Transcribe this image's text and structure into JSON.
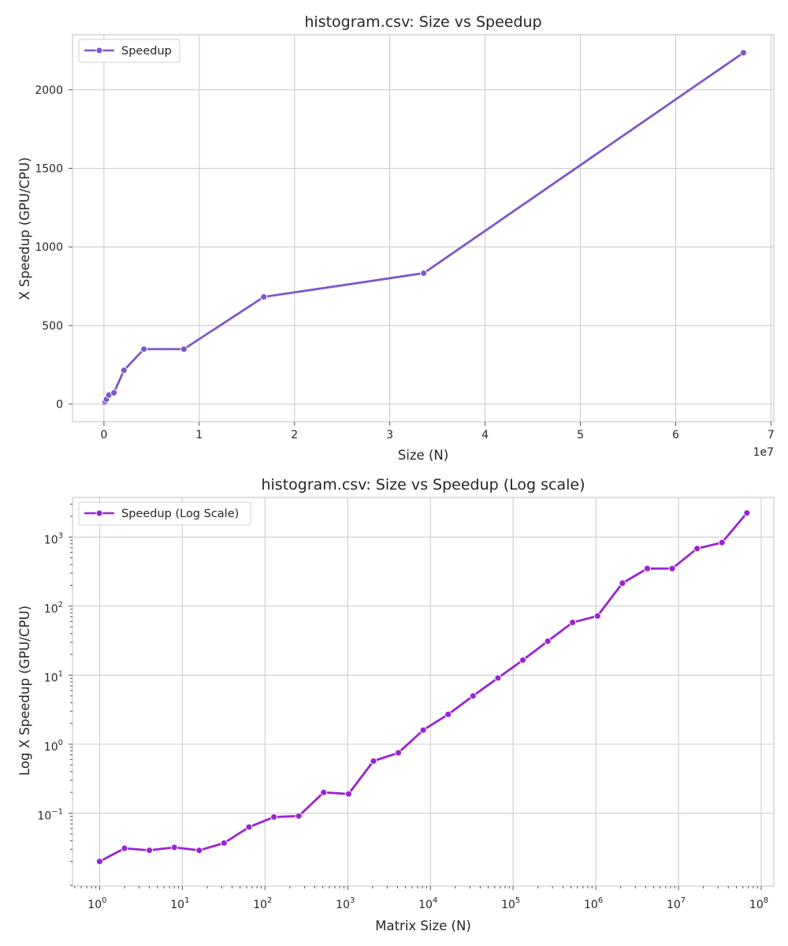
{
  "chart_data": [
    {
      "type": "line",
      "title": "histogram.csv: Size vs Speedup",
      "xlabel": "Size (N)",
      "ylabel": "X Speedup (GPU/CPU)",
      "x_offset_label": "1e7",
      "xscale": "linear",
      "yscale": "linear",
      "xlim": [
        -3300000,
        70300000
      ],
      "ylim": [
        -112,
        2350
      ],
      "xticks": [
        0,
        10000000,
        20000000,
        30000000,
        40000000,
        50000000,
        60000000,
        70000000
      ],
      "xtick_labels": [
        "0",
        "1",
        "2",
        "3",
        "4",
        "5",
        "6",
        "7"
      ],
      "yticks": [
        0,
        500,
        1000,
        1500,
        2000
      ],
      "ytick_labels": [
        "0",
        "500",
        "1000",
        "1500",
        "2000"
      ],
      "grid": true,
      "legend": "top-left",
      "color": "#7e57c9",
      "series": [
        {
          "name": "Speedup",
          "x": [
            1,
            2,
            4,
            8,
            16,
            32,
            64,
            128,
            256,
            512,
            1024,
            2048,
            4096,
            8192,
            16384,
            32768,
            65536,
            131072,
            262144,
            524288,
            1048576,
            2097152,
            4194304,
            8388608,
            16777216,
            33554432,
            67108864
          ],
          "y": [
            0.02,
            0.031,
            0.029,
            0.032,
            0.029,
            0.037,
            0.063,
            0.088,
            0.091,
            0.2,
            0.19,
            0.57,
            0.75,
            1.6,
            2.7,
            5.0,
            9.1,
            16.5,
            31,
            58,
            72,
            215,
            350,
            350,
            682,
            833,
            2235
          ]
        }
      ]
    },
    {
      "type": "line",
      "title": "histogram.csv: Size vs Speedup (Log scale)",
      "xlabel": "Matrix Size (N)",
      "ylabel": "Log X Speedup (GPU/CPU)",
      "xscale": "log",
      "yscale": "log",
      "xlim": [
        0.47,
        142000000
      ],
      "ylim": [
        0.0088,
        3750
      ],
      "xticks": [
        1,
        10,
        100,
        1000,
        10000,
        100000,
        1000000,
        10000000,
        100000000
      ],
      "xtick_exponents": [
        "0",
        "1",
        "2",
        "3",
        "4",
        "5",
        "6",
        "7",
        "8"
      ],
      "yticks": [
        0.1,
        1,
        10,
        100,
        1000
      ],
      "ytick_exponents": [
        "−1",
        "0",
        "1",
        "2",
        "3"
      ],
      "tick_base": "10",
      "grid": true,
      "legend": "top-left",
      "color": "#9a22d4",
      "series": [
        {
          "name": "Speedup (Log Scale)",
          "x": [
            1,
            2,
            4,
            8,
            16,
            32,
            64,
            128,
            256,
            512,
            1024,
            2048,
            4096,
            8192,
            16384,
            32768,
            65536,
            131072,
            262144,
            524288,
            1048576,
            2097152,
            4194304,
            8388608,
            16777216,
            33554432,
            67108864
          ],
          "y": [
            0.02,
            0.031,
            0.029,
            0.032,
            0.029,
            0.037,
            0.063,
            0.088,
            0.091,
            0.2,
            0.19,
            0.57,
            0.75,
            1.6,
            2.7,
            5.0,
            9.1,
            16.5,
            31,
            58,
            72,
            215,
            350,
            350,
            682,
            833,
            2235
          ]
        }
      ]
    }
  ]
}
